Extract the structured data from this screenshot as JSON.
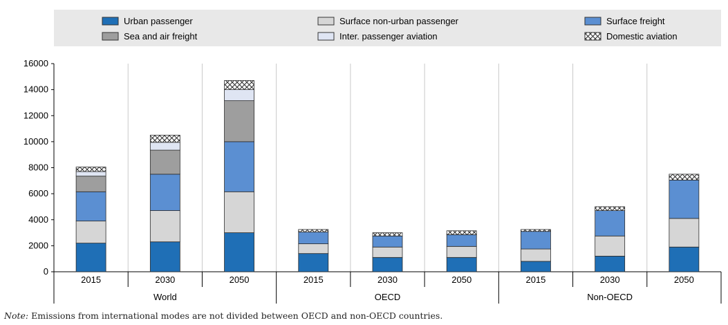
{
  "chart_data": {
    "type": "bar",
    "stacked": true,
    "groups": [
      {
        "label": "World",
        "categories": [
          "2015",
          "2030",
          "2050"
        ]
      },
      {
        "label": "OECD",
        "categories": [
          "2015",
          "2030",
          "2050"
        ]
      },
      {
        "label": "Non-OECD",
        "categories": [
          "2015",
          "2030",
          "2050"
        ]
      }
    ],
    "series": [
      {
        "name": "Urban passenger",
        "color": "#1f6fb6",
        "pattern": "solid",
        "values": [
          2200,
          2300,
          3000,
          1400,
          1100,
          1100,
          800,
          1200,
          1900
        ]
      },
      {
        "name": "Surface non-urban passenger",
        "color": "#d6d6d6",
        "pattern": "solid",
        "values": [
          1700,
          2400,
          3150,
          750,
          800,
          850,
          950,
          1550,
          2200
        ]
      },
      {
        "name": "Surface freight",
        "color": "#5b8fd2",
        "pattern": "solid",
        "values": [
          2250,
          2800,
          3850,
          900,
          850,
          900,
          1350,
          1950,
          2950
        ]
      },
      {
        "name": "Sea and air freight",
        "color": "#9e9e9e",
        "pattern": "solid",
        "values": [
          1200,
          1850,
          3150,
          0,
          0,
          0,
          0,
          0,
          0
        ]
      },
      {
        "name": "Inter. passenger aviation",
        "color": "#dfe5f3",
        "pattern": "solid",
        "values": [
          350,
          600,
          850,
          0,
          0,
          0,
          0,
          0,
          0
        ]
      },
      {
        "name": "Domestic aviation",
        "color": "#ffffff",
        "pattern": "crosshatch",
        "values": [
          350,
          550,
          700,
          200,
          250,
          300,
          150,
          300,
          450
        ]
      }
    ],
    "legend_order": [
      "Urban passenger",
      "Surface non-urban passenger",
      "Surface freight",
      "Sea and air freight",
      "Inter. passenger aviation",
      "Domestic aviation"
    ],
    "legend_position": "top",
    "ylim": [
      0,
      16000
    ],
    "yticks": [
      0,
      2000,
      4000,
      6000,
      8000,
      10000,
      12000,
      14000,
      16000
    ],
    "grid": "vertical separators",
    "title": "",
    "xlabel": "",
    "ylabel": ""
  },
  "note": {
    "label": "Note:",
    "text": "Emissions from international modes are not divided between OECD and non-OECD countries."
  }
}
